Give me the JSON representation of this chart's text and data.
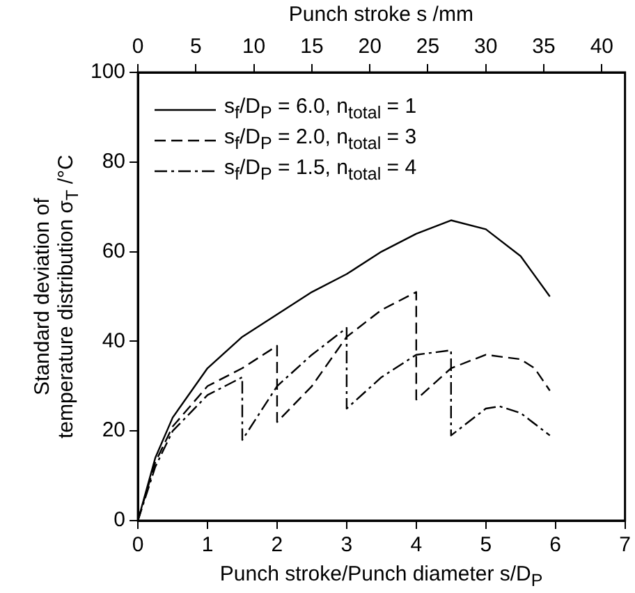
{
  "chart_data": {
    "type": "line",
    "xlabel": "Punch stroke/Punch diameter s/D$_{P}$",
    "x2label": "Punch stroke s /mm",
    "ylabel": "Standard deviation of\ntemperature distribution σ$_{T}$ /°C",
    "xlim": [
      0,
      7
    ],
    "xticks": [
      0,
      1,
      2,
      3,
      4,
      5,
      6,
      7
    ],
    "x2lim": [
      0,
      42
    ],
    "x2ticks": [
      0,
      5,
      10,
      15,
      20,
      25,
      30,
      35,
      40
    ],
    "ylim": [
      0,
      100
    ],
    "yticks": [
      0,
      20,
      40,
      60,
      80,
      100
    ],
    "grid": false,
    "legend": "top left",
    "marker": "none",
    "series": [
      {
        "name": "s$_{f}$/D$_{P}$ = 6.0, n$_{total}$ = 1",
        "color": "#000000",
        "line_style": "solid",
        "x": [
          0,
          0.25,
          0.5,
          1,
          1.5,
          2,
          2.5,
          3,
          3.5,
          4,
          4.5,
          5,
          5.5,
          5.92
        ],
        "values": [
          0,
          14,
          23,
          34,
          41,
          46,
          51,
          55,
          60,
          64,
          67,
          65,
          59,
          50
        ]
      },
      {
        "name": "s$_{f}$/D$_{P}$ = 2.0, n$_{total}$ = 3",
        "color": "#000000",
        "line_style": "dashed",
        "x": [
          0,
          0.25,
          0.5,
          1,
          1.5,
          2,
          2,
          2.5,
          3,
          3.5,
          4,
          4,
          4.5,
          5,
          5.5,
          5.7,
          5.92
        ],
        "values": [
          0,
          13,
          21,
          30,
          34,
          39,
          22,
          30,
          41,
          47,
          51,
          27,
          34,
          37,
          36,
          34,
          29
        ]
      },
      {
        "name": "s$_{f}$/D$_{P}$ = 1.5, n$_{total}$ = 4",
        "color": "#000000",
        "line_style": "dashdot",
        "x": [
          0,
          0.25,
          0.5,
          1,
          1.5,
          1.5,
          2,
          2.5,
          3,
          3,
          3.5,
          4,
          4.5,
          4.5,
          5,
          5.2,
          5.5,
          5.92
        ],
        "values": [
          0,
          12,
          20,
          28,
          32,
          18,
          30,
          37,
          43,
          25,
          32,
          37,
          38,
          19,
          25,
          25.5,
          24,
          19
        ]
      }
    ]
  }
}
